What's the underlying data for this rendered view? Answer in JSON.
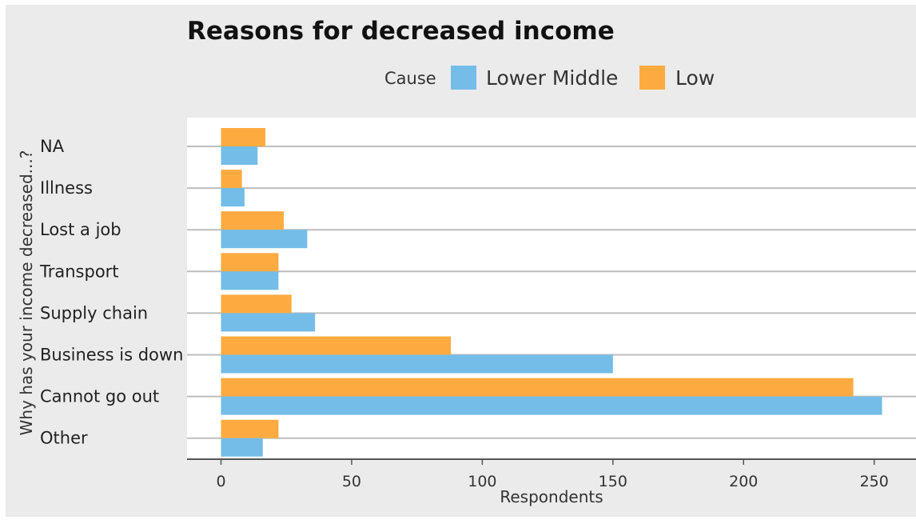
{
  "chart_data": {
    "type": "bar",
    "orientation": "horizontal",
    "title": "Reasons for decreased income",
    "xlabel": "Respondents",
    "ylabel": "Why has your income decreased...?",
    "legend_title": "Cause",
    "legend_position": "top",
    "categories": [
      "NA",
      "Illness",
      "Lost a job",
      "Transport",
      "Supply chain",
      "Business is down",
      "Cannot go out",
      "Other"
    ],
    "series": [
      {
        "name": "Lower Middle",
        "color": "#74bde8",
        "values": [
          14,
          9,
          33,
          22,
          36,
          150,
          253,
          16
        ]
      },
      {
        "name": "Low",
        "color": "#fdab41",
        "values": [
          17,
          8,
          24,
          22,
          27,
          88,
          242,
          22
        ]
      }
    ],
    "xlim": [
      -13,
      266
    ],
    "xticks": [
      0,
      50,
      100,
      150,
      200,
      250
    ],
    "grid": true
  }
}
